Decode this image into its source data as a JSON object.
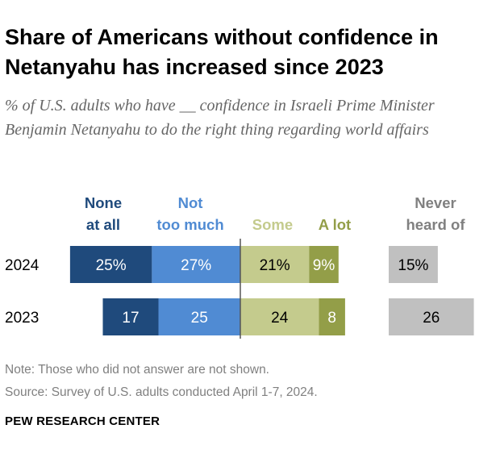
{
  "title": "Share of Americans without confidence in Netanyahu has increased since 2023",
  "subtitle": "% of U.S. adults who have __ confidence in Israeli Prime Minister Benjamin Netanyahu to do the right thing regarding world affairs",
  "note": "Note: Those who did not answer are not shown.",
  "source": "Source: Survey of U.S. adults conducted April 1-7, 2024.",
  "brand": "PEW RESEARCH CENTER",
  "chart_data": {
    "type": "bar",
    "orientation": "horizontal-diverging",
    "categories": [
      "2024",
      "2023"
    ],
    "series": [
      {
        "name": "None at all",
        "label_lines": [
          "None",
          "at all"
        ],
        "values": [
          25,
          17
        ],
        "labels": [
          "25%",
          "17"
        ],
        "color": "#1f4a7c",
        "text_color": "#ffffff",
        "side": "negative"
      },
      {
        "name": "Not too much",
        "label_lines": [
          "Not",
          "too much"
        ],
        "values": [
          27,
          25
        ],
        "labels": [
          "27%",
          "25"
        ],
        "color": "#508bd3",
        "text_color": "#ffffff",
        "side": "negative"
      },
      {
        "name": "Some",
        "label_lines": [
          "",
          "Some"
        ],
        "values": [
          21,
          24
        ],
        "labels": [
          "21%",
          "24"
        ],
        "color": "#c4cb8d",
        "text_color": "#000000",
        "side": "positive"
      },
      {
        "name": "A lot",
        "label_lines": [
          "",
          "A lot"
        ],
        "values": [
          9,
          8
        ],
        "labels": [
          "9%",
          "8"
        ],
        "color": "#939e48",
        "text_color": "#ffffff",
        "side": "positive"
      },
      {
        "name": "Never heard of",
        "label_lines": [
          "Never",
          "heard of"
        ],
        "values": [
          15,
          26
        ],
        "labels": [
          "15%",
          "26"
        ],
        "color": "#c0c0c0",
        "text_color": "#000000",
        "side": "separate"
      }
    ],
    "legend_colors": [
      "#1f4a7c",
      "#508bd3",
      "#c4cb8d",
      "#939e48",
      "#808080"
    ]
  }
}
